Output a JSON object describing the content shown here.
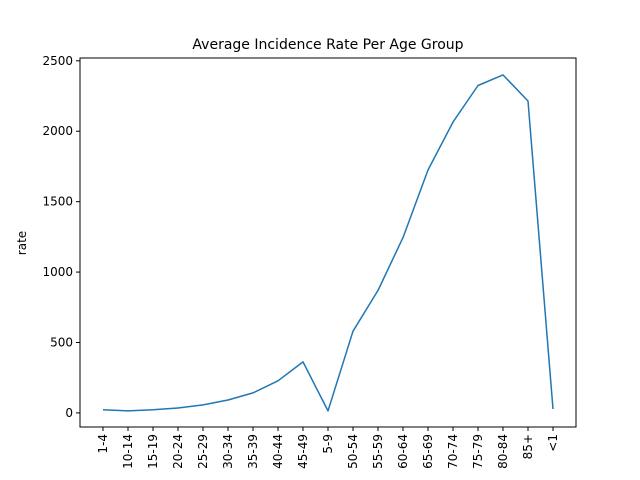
{
  "chart_data": {
    "type": "line",
    "title": "Average Incidence Rate Per Age Group",
    "xlabel": "",
    "ylabel": "rate",
    "categories": [
      "1-4",
      "10-14",
      "15-19",
      "20-24",
      "25-29",
      "30-34",
      "35-39",
      "40-44",
      "45-49",
      "5-9",
      "50-54",
      "55-59",
      "60-64",
      "65-69",
      "70-74",
      "75-79",
      "80-84",
      "85+",
      "<1"
    ],
    "series": [
      {
        "values": [
          22,
          14,
          22,
          35,
          57,
          92,
          142,
          228,
          362,
          14,
          580,
          870,
          1245,
          1725,
          2065,
          2325,
          2400,
          2215,
          28
        ]
      }
    ],
    "ylim": [
      -100,
      2520
    ],
    "yticks": [
      0,
      500,
      1000,
      1500,
      2000,
      2500
    ],
    "grid": false,
    "line_color": "#1f77b4"
  }
}
